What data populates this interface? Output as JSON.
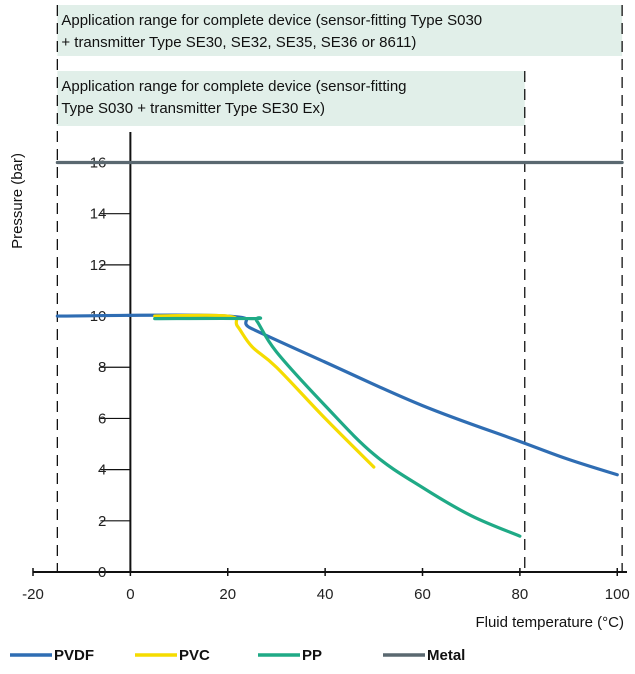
{
  "chart_data": {
    "type": "line",
    "xlabel": "Fluid temperature (°C)",
    "ylabel": "Pressure (bar)",
    "xlim": [
      -20,
      102
    ],
    "ylim": [
      0,
      16.8
    ],
    "x_ticks": [
      -20,
      0,
      20,
      40,
      60,
      80,
      100
    ],
    "y_ticks": [
      0,
      2,
      4,
      6,
      8,
      10,
      12,
      14,
      16
    ],
    "grid": false,
    "legend_position": "bottom",
    "application_ranges": [
      {
        "lines": [
          "Application range for complete device (sensor-fitting Type S030",
          " + transmitter Type SE30, SE32, SE35, SE36 or 8611)"
        ],
        "x_min": -15,
        "x_max": 101
      },
      {
        "lines": [
          "Application range for complete device (sensor-fitting",
          "Type S030 + transmitter Type SE30 Ex)"
        ],
        "x_min": -15,
        "x_max": 81
      }
    ],
    "series": [
      {
        "name": "PVDF",
        "color": "#2f6db3",
        "x": [
          -15,
          20,
          25,
          40,
          60,
          80,
          90,
          100
        ],
        "y": [
          10,
          10,
          9.5,
          8.2,
          6.5,
          5.1,
          4.4,
          3.8
        ]
      },
      {
        "name": "PVC",
        "color": "#f5dc00",
        "x": [
          5,
          20,
          22,
          25,
          30,
          40,
          50
        ],
        "y": [
          10,
          10,
          9.6,
          8.8,
          8.0,
          6.0,
          4.1
        ]
      },
      {
        "name": "PP",
        "color": "#1faa86",
        "x": [
          5,
          25,
          26,
          30,
          40,
          50,
          60,
          70,
          80
        ],
        "y": [
          9.9,
          9.9,
          9.8,
          8.6,
          6.5,
          4.6,
          3.3,
          2.2,
          1.4
        ]
      },
      {
        "name": "Metal",
        "color": "#5a6870",
        "x": [
          -15,
          101
        ],
        "y": [
          16,
          16
        ]
      }
    ]
  }
}
